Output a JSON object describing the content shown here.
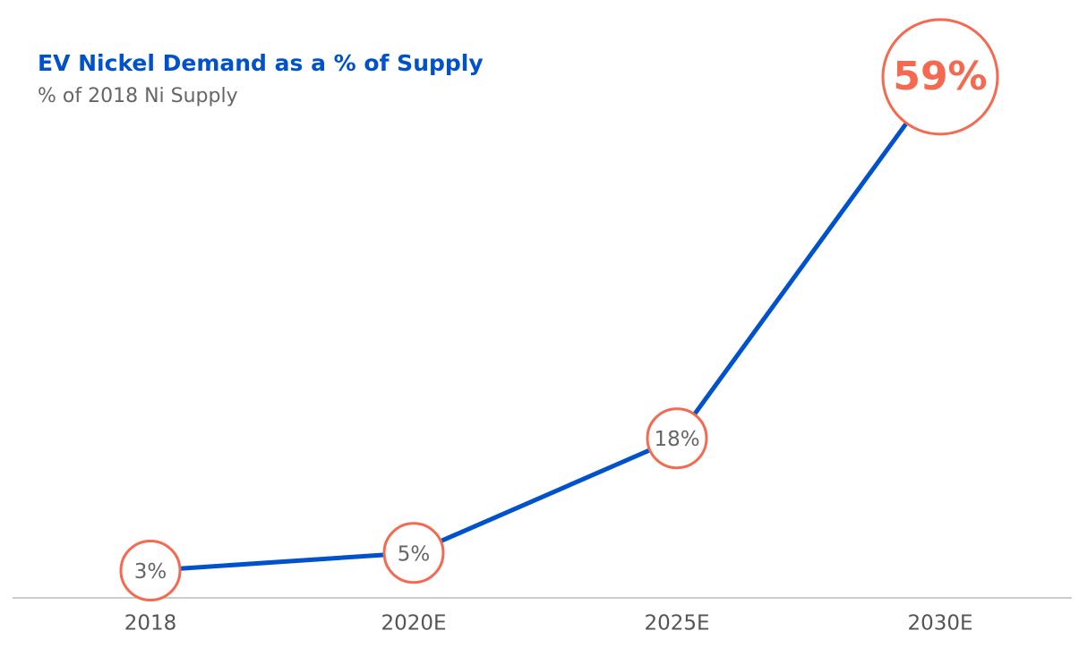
{
  "chart_data": {
    "type": "line",
    "title": "EV Nickel Demand as a % of Supply",
    "subtitle": "% of 2018 Ni Supply",
    "categories": [
      "2018",
      "2020E",
      "2025E",
      "2030E"
    ],
    "values": [
      3,
      5,
      18,
      59
    ],
    "value_labels": [
      "3%",
      "5%",
      "18%",
      "59%"
    ],
    "color": "#0052cc",
    "marker_color": "#f4694f",
    "ylim": [
      0,
      60
    ]
  }
}
